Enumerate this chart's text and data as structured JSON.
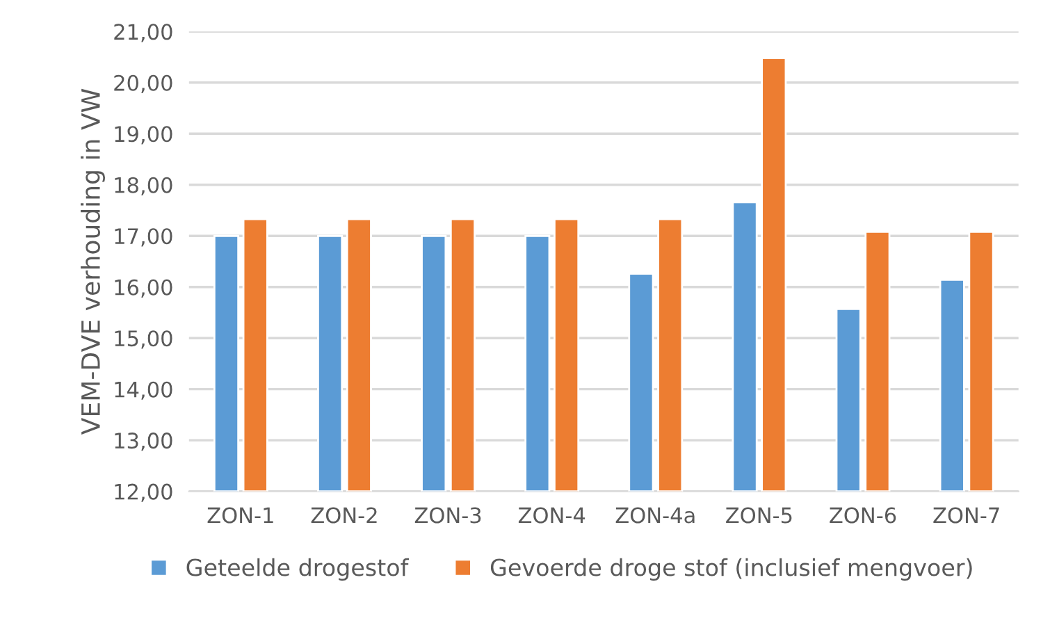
{
  "chart_data": {
    "type": "bar",
    "ylabel": "VEM-DVE verhouding in VW",
    "categories": [
      "ZON-1",
      "ZON-2",
      "ZON-3",
      "ZON-4",
      "ZON-4a",
      "ZON-5",
      "ZON-6",
      "ZON-7"
    ],
    "series": [
      {
        "name": "Geteelde drogestof",
        "color": "#5b9bd5",
        "values": [
          17.0,
          17.0,
          17.0,
          17.0,
          16.26,
          17.66,
          15.57,
          16.14
        ]
      },
      {
        "name": "Gevoerde droge stof (inclusief mengvoer)",
        "color": "#ed7d31",
        "values": [
          17.33,
          17.33,
          17.33,
          17.33,
          17.33,
          20.48,
          17.08,
          17.08
        ]
      }
    ],
    "ylim": [
      12,
      21
    ],
    "yticks": [
      {
        "value": 12,
        "label": "12,00"
      },
      {
        "value": 13,
        "label": "13,00"
      },
      {
        "value": 14,
        "label": "14,00"
      },
      {
        "value": 15,
        "label": "15,00"
      },
      {
        "value": 16,
        "label": "16,00"
      },
      {
        "value": 17,
        "label": "17,00"
      },
      {
        "value": 18,
        "label": "18,00"
      },
      {
        "value": 19,
        "label": "19,00"
      },
      {
        "value": 20,
        "label": "20,00"
      },
      {
        "value": 21,
        "label": "21,00"
      }
    ],
    "grid": "y",
    "legend": "bottom"
  }
}
